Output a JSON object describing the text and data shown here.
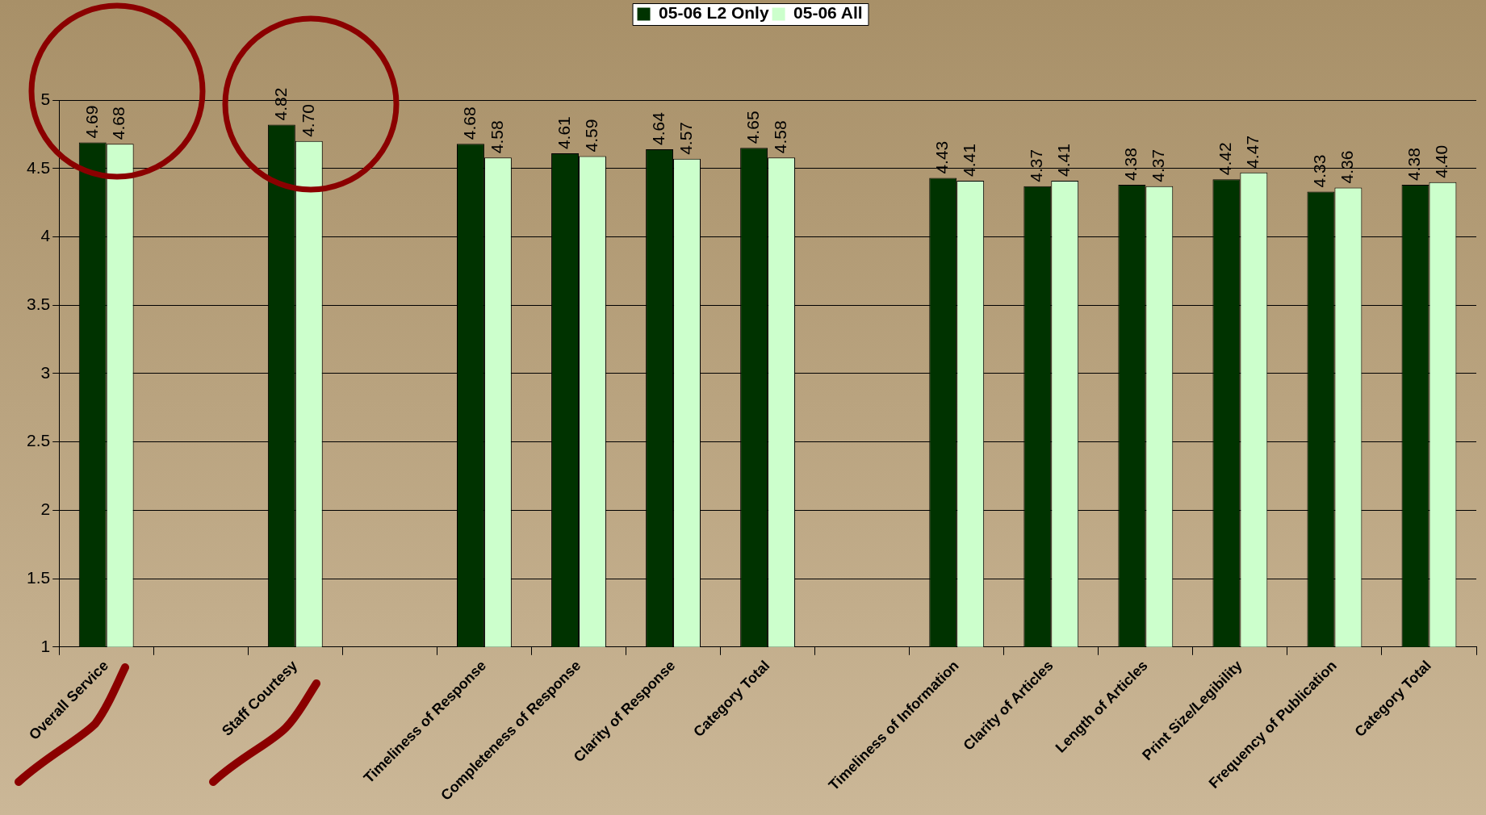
{
  "chart_data": {
    "type": "bar",
    "categories": [
      "Overall Service",
      null,
      "Staff Courtesy",
      null,
      "Timeliness of Response",
      "Completeness of Response",
      "Clarity of Response",
      "Category Total",
      null,
      "Timeliness of Information",
      "Clarity of Articles",
      "Length of Articles",
      "Print Size/Legibility",
      "Frequency of Publication",
      "Category Total"
    ],
    "series": [
      {
        "name": "05-06 L2 Only",
        "color": "#003300",
        "values": [
          4.69,
          null,
          4.82,
          null,
          4.68,
          4.61,
          4.64,
          4.65,
          null,
          4.43,
          4.37,
          4.38,
          4.42,
          4.33,
          4.38
        ],
        "value_labels": [
          "4.69",
          null,
          "4.82",
          null,
          "4.68",
          "4.61",
          "4.64",
          "4.65",
          null,
          "4.43",
          "4.37",
          "4.38",
          "4.42",
          "4.33",
          "4.38"
        ]
      },
      {
        "name": "05-06 All",
        "color": "#ccffcc",
        "values": [
          4.68,
          null,
          4.7,
          null,
          4.58,
          4.59,
          4.57,
          4.58,
          null,
          4.41,
          4.41,
          4.37,
          4.47,
          4.36,
          4.4
        ],
        "value_labels": [
          "4.68",
          null,
          "4.70",
          null,
          "4.58",
          "4.59",
          "4.57",
          "4.58",
          null,
          "4.41",
          "4.41",
          "4.37",
          "4.47",
          "4.36",
          "4.40"
        ]
      }
    ],
    "ylim": [
      1,
      5
    ],
    "yticks": [
      1,
      1.5,
      2,
      2.5,
      3,
      3.5,
      4,
      4.5,
      5
    ],
    "grid": "y",
    "legend": "top"
  }
}
